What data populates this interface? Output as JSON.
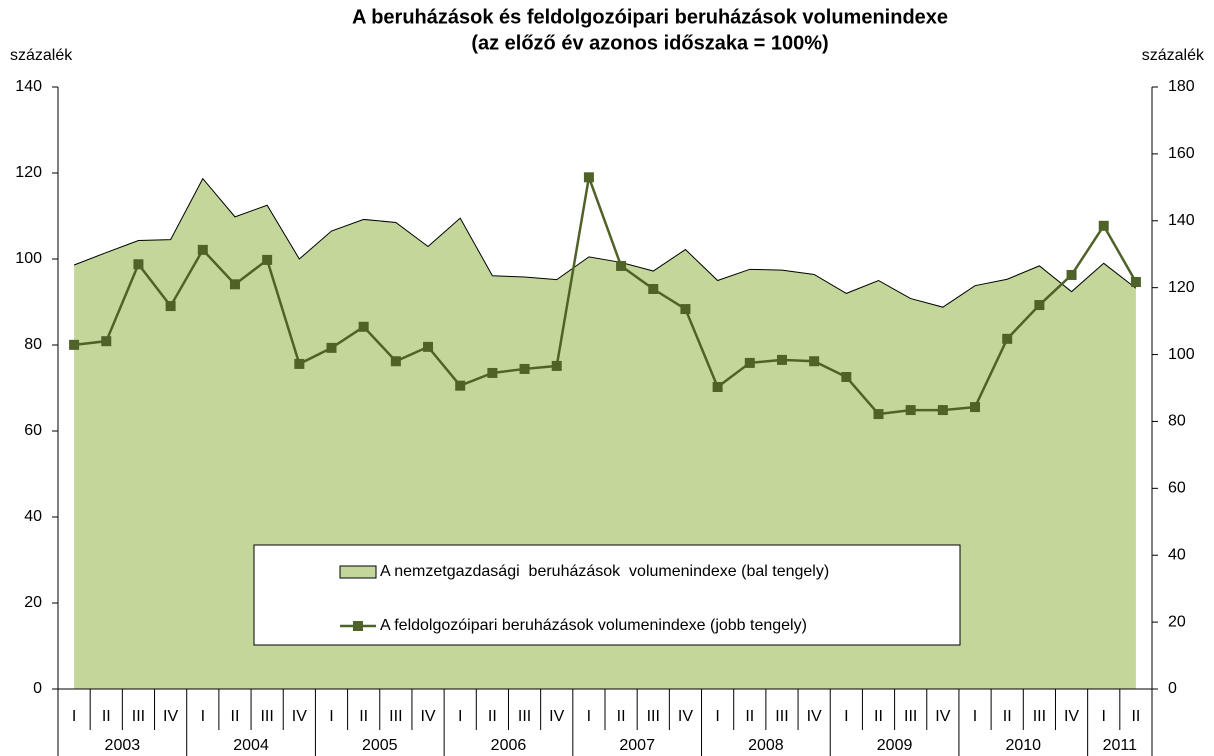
{
  "chart_data": {
    "type": "area_line",
    "title": "A beruházások és feldolgozóipari beruházások volumenindexe",
    "subtitle": "(az előző év azonos időszaka = 100%)",
    "y_label": "százalék",
    "y2_label": "százalék",
    "categories": [
      "I",
      "II",
      "III",
      "IV",
      "I",
      "II",
      "III",
      "IV",
      "I",
      "II",
      "III",
      "IV",
      "I",
      "II",
      "III",
      "IV",
      "I",
      "II",
      "III",
      "IV",
      "I",
      "II",
      "III",
      "IV",
      "I",
      "II",
      "III",
      "IV",
      "I",
      "II",
      "III",
      "IV",
      "I",
      "II"
    ],
    "years": [
      "2003",
      "2004",
      "2005",
      "2006",
      "2007",
      "2008",
      "2009",
      "2010",
      "2011"
    ],
    "ylim": [
      0,
      140
    ],
    "yticks": [
      0,
      20,
      40,
      60,
      80,
      100,
      120,
      140
    ],
    "y2lim": [
      0,
      180
    ],
    "y2ticks": [
      0,
      20,
      40,
      60,
      80,
      100,
      120,
      140,
      160,
      180
    ],
    "series": [
      {
        "name": "A nemzetgazdasági  beruházások  volumenindexe (bal tengely)",
        "color": "#c4d79b",
        "kind": "area",
        "values": [
          98.6,
          101.5,
          104.3,
          104.5,
          118.7,
          109.8,
          112.5,
          100,
          106.5,
          109.2,
          108.5,
          102.9,
          109.5,
          96.1,
          95.8,
          95.2,
          100.5,
          99.2,
          97.2,
          102.2,
          95,
          97.6,
          97.4,
          96.4,
          92,
          95,
          90.8,
          88.8,
          93.8,
          95.3,
          98.4,
          92.4,
          99,
          93.2
        ]
      },
      {
        "name": "A feldolgozóipari beruházások volumenindexe (jobb tengely)",
        "color": "#4f6228",
        "kind": "line",
        "axis": "y2",
        "values": [
          102.9,
          104,
          127,
          114.5,
          131.3,
          121,
          128.3,
          97.2,
          102,
          108.3,
          98,
          102.3,
          90.7,
          94.5,
          95.7,
          96.6,
          153,
          126.5,
          119.6,
          113.6,
          90.3,
          97.5,
          98.4,
          98,
          93.3,
          82.2,
          83.4,
          83.4,
          84.3,
          104.7,
          114.8,
          123.8,
          138.5,
          121.7
        ]
      }
    ]
  }
}
